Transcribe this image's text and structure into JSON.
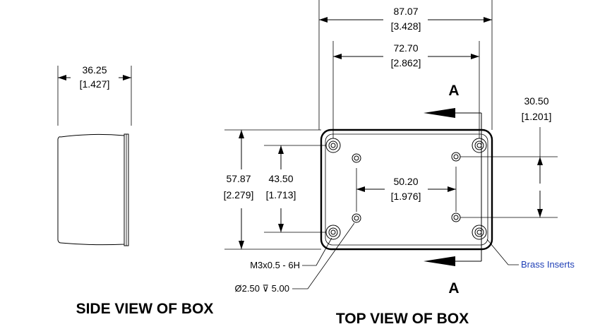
{
  "side_view": {
    "width_mm": "36.25",
    "width_in": "[1.427]",
    "title": "SIDE VIEW OF BOX"
  },
  "top_view": {
    "overall_width_mm": "87.07",
    "overall_width_in": "[3.428]",
    "hole_spacing_x_mm": "72.70",
    "hole_spacing_x_in": "[2.862]",
    "overall_height_mm": "57.87",
    "overall_height_in": "[2.279]",
    "hole_spacing_y_mm": "43.50",
    "hole_spacing_y_in": "[1.713]",
    "inner_spacing_x_mm": "50.20",
    "inner_spacing_x_in": "[1.976]",
    "inner_spacing_y_mm": "30.50",
    "inner_spacing_y_in": "[1.201]",
    "section_label_top": "A",
    "section_label_bottom": "A",
    "thread_callout": "M3x0.5 - 6H",
    "hole_callout": "Ø2.50 ⊽ 5.00",
    "inserts_callout": "Brass Inserts",
    "title": "TOP VIEW OF BOX"
  },
  "colors": {
    "line": "#000000",
    "callout_blue": "#1f3fb6",
    "background": "#ffffff"
  }
}
